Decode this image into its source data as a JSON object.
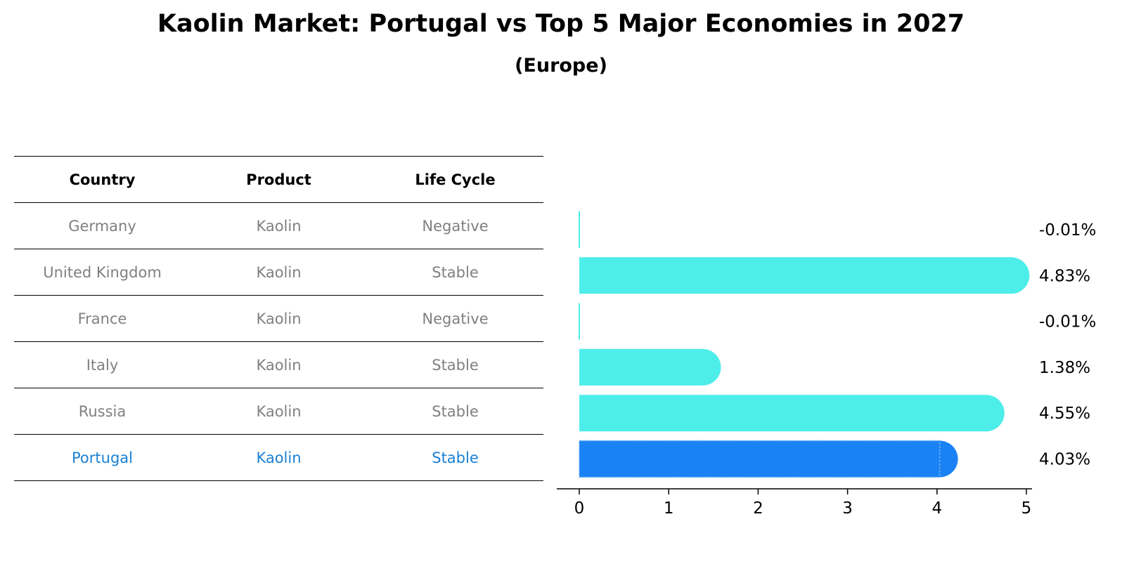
{
  "title": "Kaolin Market: Portugal vs Top 5 Major Economies in 2027",
  "subtitle": "(Europe)",
  "table": {
    "headers": [
      "Country",
      "Product",
      "Life Cycle"
    ],
    "rows": [
      [
        "Germany",
        "Kaolin",
        "Negative"
      ],
      [
        "United Kingdom",
        "Kaolin",
        "Stable"
      ],
      [
        "France",
        "Kaolin",
        "Negative"
      ],
      [
        "Italy",
        "Kaolin",
        "Stable"
      ],
      [
        "Russia",
        "Kaolin",
        "Stable"
      ],
      [
        "Portugal",
        "Kaolin",
        "Stable"
      ]
    ],
    "highlight_row": "Portugal"
  },
  "chart_data": {
    "type": "bar",
    "orientation": "horizontal",
    "categories": [
      "Germany",
      "United Kingdom",
      "France",
      "Italy",
      "Russia",
      "Portugal"
    ],
    "values": [
      -0.01,
      4.83,
      -0.01,
      1.38,
      4.55,
      4.03
    ],
    "value_labels": [
      "-0.01%",
      "4.83%",
      "-0.01%",
      "1.38%",
      "4.55%",
      "4.03%"
    ],
    "xlim": [
      0,
      5
    ],
    "xticks": [
      "0",
      "1",
      "2",
      "3",
      "4",
      "5"
    ],
    "grid": false,
    "colors": {
      "default": "#4deeea",
      "highlight": "#1a82f5",
      "highlight_category": "Portugal"
    }
  }
}
